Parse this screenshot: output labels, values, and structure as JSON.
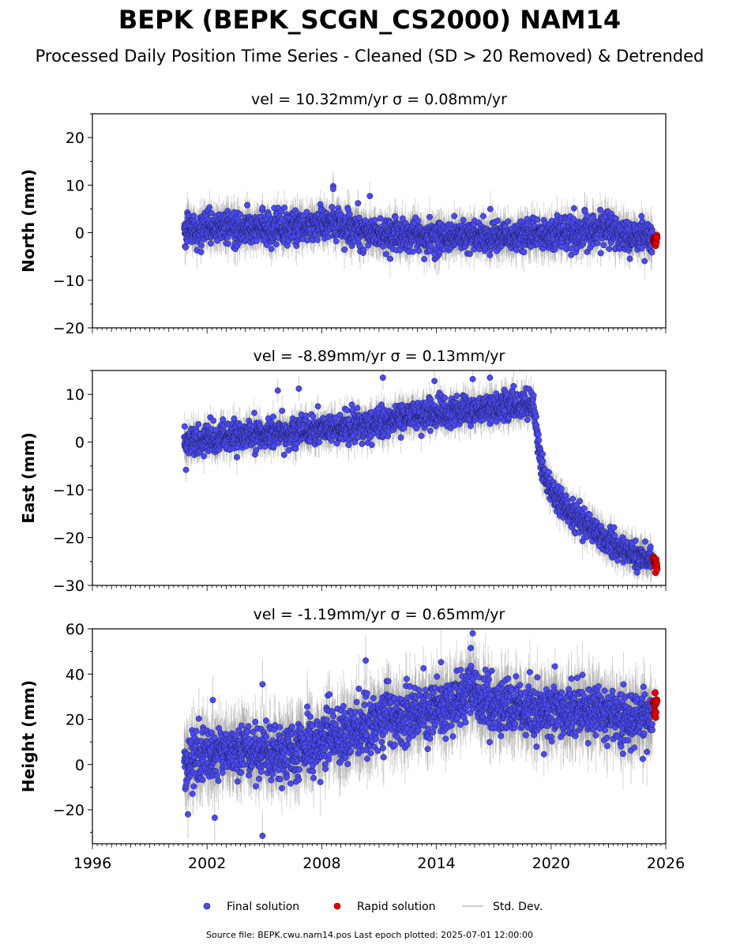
{
  "figure": {
    "title": "BEPK (BEPK_SCGN_CS2000) NAM14",
    "subtitle": "Processed Daily Position Time Series - Cleaned (SD > 20 Removed) & Detrended",
    "footer": "Source file: BEPK.cwu.nam14.pos  Last epoch plotted: 2025-07-01 12:00:00"
  },
  "legend": {
    "placement": "bottom-center",
    "items": [
      {
        "label": "Final solution",
        "color": "#4a4af0"
      },
      {
        "label": "Rapid solution",
        "color": "#e00000"
      },
      {
        "label": "Std. Dev.",
        "color": "#cccccc"
      }
    ]
  },
  "chart_data": [
    {
      "type": "scatter",
      "title": "vel = 10.32mm/yr   σ = 0.08mm/yr",
      "ylabel": "North (mm)",
      "xlim": [
        1996,
        2026
      ],
      "ylim": [
        -20,
        25
      ],
      "xticks": [
        1996,
        2002,
        2008,
        2014,
        2020,
        2026
      ],
      "yticks": [
        -20,
        -10,
        0,
        10,
        20
      ],
      "grid": false,
      "series": [
        {
          "name": "Final solution",
          "color": "#4a4af0",
          "x_range": [
            2000.8,
            2025.3
          ],
          "trend": [
            [
              2000.8,
              0.5
            ],
            [
              2003,
              1.0
            ],
            [
              2006,
              0.8
            ],
            [
              2008,
              2.0
            ],
            [
              2009,
              2.0
            ],
            [
              2011,
              -0.5
            ],
            [
              2014,
              -0.5
            ],
            [
              2017,
              -0.8
            ],
            [
              2020,
              -0.3
            ],
            [
              2022,
              0.0
            ],
            [
              2023,
              2.0
            ],
            [
              2023.5,
              -0.5
            ],
            [
              2025.3,
              -1.2
            ]
          ],
          "scatter": 1.6,
          "outliers": [
            [
              2008.6,
              9.8
            ],
            [
              2008.6,
              9.2
            ],
            [
              2004.1,
              5.8
            ],
            [
              2009.9,
              6.2
            ],
            [
              2004.9,
              5.2
            ],
            [
              2016.8,
              -4.7
            ],
            [
              2013.9,
              -4.5
            ],
            [
              2022.6,
              -4.3
            ],
            [
              2010.2,
              -3.6
            ]
          ]
        },
        {
          "name": "Rapid solution",
          "color": "#e00000",
          "x_range": [
            2025.35,
            2025.55
          ],
          "trend": [
            [
              2025.35,
              -1.3
            ],
            [
              2025.55,
              -1.5
            ]
          ],
          "scatter": 0.6
        }
      ]
    },
    {
      "type": "scatter",
      "title": "vel = -8.89mm/yr   σ = 0.13mm/yr",
      "ylabel": "East (mm)",
      "xlim": [
        1996,
        2026
      ],
      "ylim": [
        -30,
        15
      ],
      "xticks": [
        1996,
        2002,
        2008,
        2014,
        2020,
        2026
      ],
      "yticks": [
        -30,
        -20,
        -10,
        0,
        10
      ],
      "grid": false,
      "series": [
        {
          "name": "Final solution",
          "color": "#4a4af0",
          "x_range": [
            2000.8,
            2025.3
          ],
          "trend": [
            [
              2000.8,
              0.0
            ],
            [
              2003,
              1.0
            ],
            [
              2006,
              2.0
            ],
            [
              2008,
              2.5
            ],
            [
              2010,
              3.5
            ],
            [
              2012,
              5.0
            ],
            [
              2014,
              6.0
            ],
            [
              2016,
              6.5
            ],
            [
              2018,
              7.5
            ],
            [
              2019.1,
              7.5
            ],
            [
              2019.3,
              0.0
            ],
            [
              2019.5,
              -5.0
            ],
            [
              2020,
              -10.0
            ],
            [
              2021,
              -14.5
            ],
            [
              2022,
              -18.0
            ],
            [
              2023,
              -21.0
            ],
            [
              2024,
              -23.0
            ],
            [
              2025.3,
              -25.0
            ]
          ],
          "scatter": 1.4,
          "outliers": [
            [
              2000.9,
              -5.8
            ],
            [
              2005.7,
              10.8
            ],
            [
              2006.8,
              11.2
            ],
            [
              2011.2,
              13.5
            ],
            [
              2013.9,
              12.8
            ],
            [
              2015.9,
              13.2
            ],
            [
              2016.8,
              13.5
            ],
            [
              2024.5,
              -27.3
            ],
            [
              2007.8,
              7.5
            ]
          ]
        },
        {
          "name": "Rapid solution",
          "color": "#e00000",
          "x_range": [
            2025.35,
            2025.55
          ],
          "trend": [
            [
              2025.35,
              -24.8
            ],
            [
              2025.55,
              -26.0
            ]
          ],
          "scatter": 0.8
        }
      ]
    },
    {
      "type": "scatter",
      "title": "vel = -1.19mm/yr   σ = 0.65mm/yr",
      "ylabel": "Height (mm)",
      "xlim": [
        1996,
        2026
      ],
      "ylim": [
        -35,
        60
      ],
      "xticks": [
        1996,
        2002,
        2008,
        2014,
        2020,
        2026
      ],
      "yticks": [
        -20,
        0,
        20,
        40,
        60
      ],
      "grid": false,
      "series": [
        {
          "name": "Final solution",
          "color": "#4a4af0",
          "x_range": [
            2000.8,
            2025.3
          ],
          "trend": [
            [
              2000.8,
              0.0
            ],
            [
              2002,
              5.0
            ],
            [
              2004,
              7.0
            ],
            [
              2006,
              5.0
            ],
            [
              2008,
              10.0
            ],
            [
              2010,
              15.0
            ],
            [
              2011,
              20.0
            ],
            [
              2013,
              22.0
            ],
            [
              2015,
              28.0
            ],
            [
              2016,
              32.0
            ],
            [
              2017,
              26.0
            ],
            [
              2019,
              24.0
            ],
            [
              2020,
              22.0
            ],
            [
              2022,
              25.0
            ],
            [
              2023,
              22.0
            ],
            [
              2024,
              20.0
            ],
            [
              2025.3,
              22.0
            ]
          ],
          "scatter": 6.0,
          "outliers": [
            [
              2004.9,
              -31.5
            ],
            [
              2004.9,
              35.5
            ],
            [
              2001.0,
              -22.0
            ],
            [
              2002.4,
              -23.5
            ],
            [
              2015.9,
              58.0
            ],
            [
              2015.8,
              51.5
            ],
            [
              2010.3,
              46.0
            ],
            [
              2024.8,
              2.5
            ],
            [
              2008.4,
              31.0
            ],
            [
              2002.3,
              28.5
            ]
          ]
        },
        {
          "name": "Rapid solution",
          "color": "#e00000",
          "x_range": [
            2025.35,
            2025.55
          ],
          "trend": [
            [
              2025.35,
              26.0
            ],
            [
              2025.55,
              28.0
            ]
          ],
          "scatter": 3.0
        }
      ]
    }
  ]
}
